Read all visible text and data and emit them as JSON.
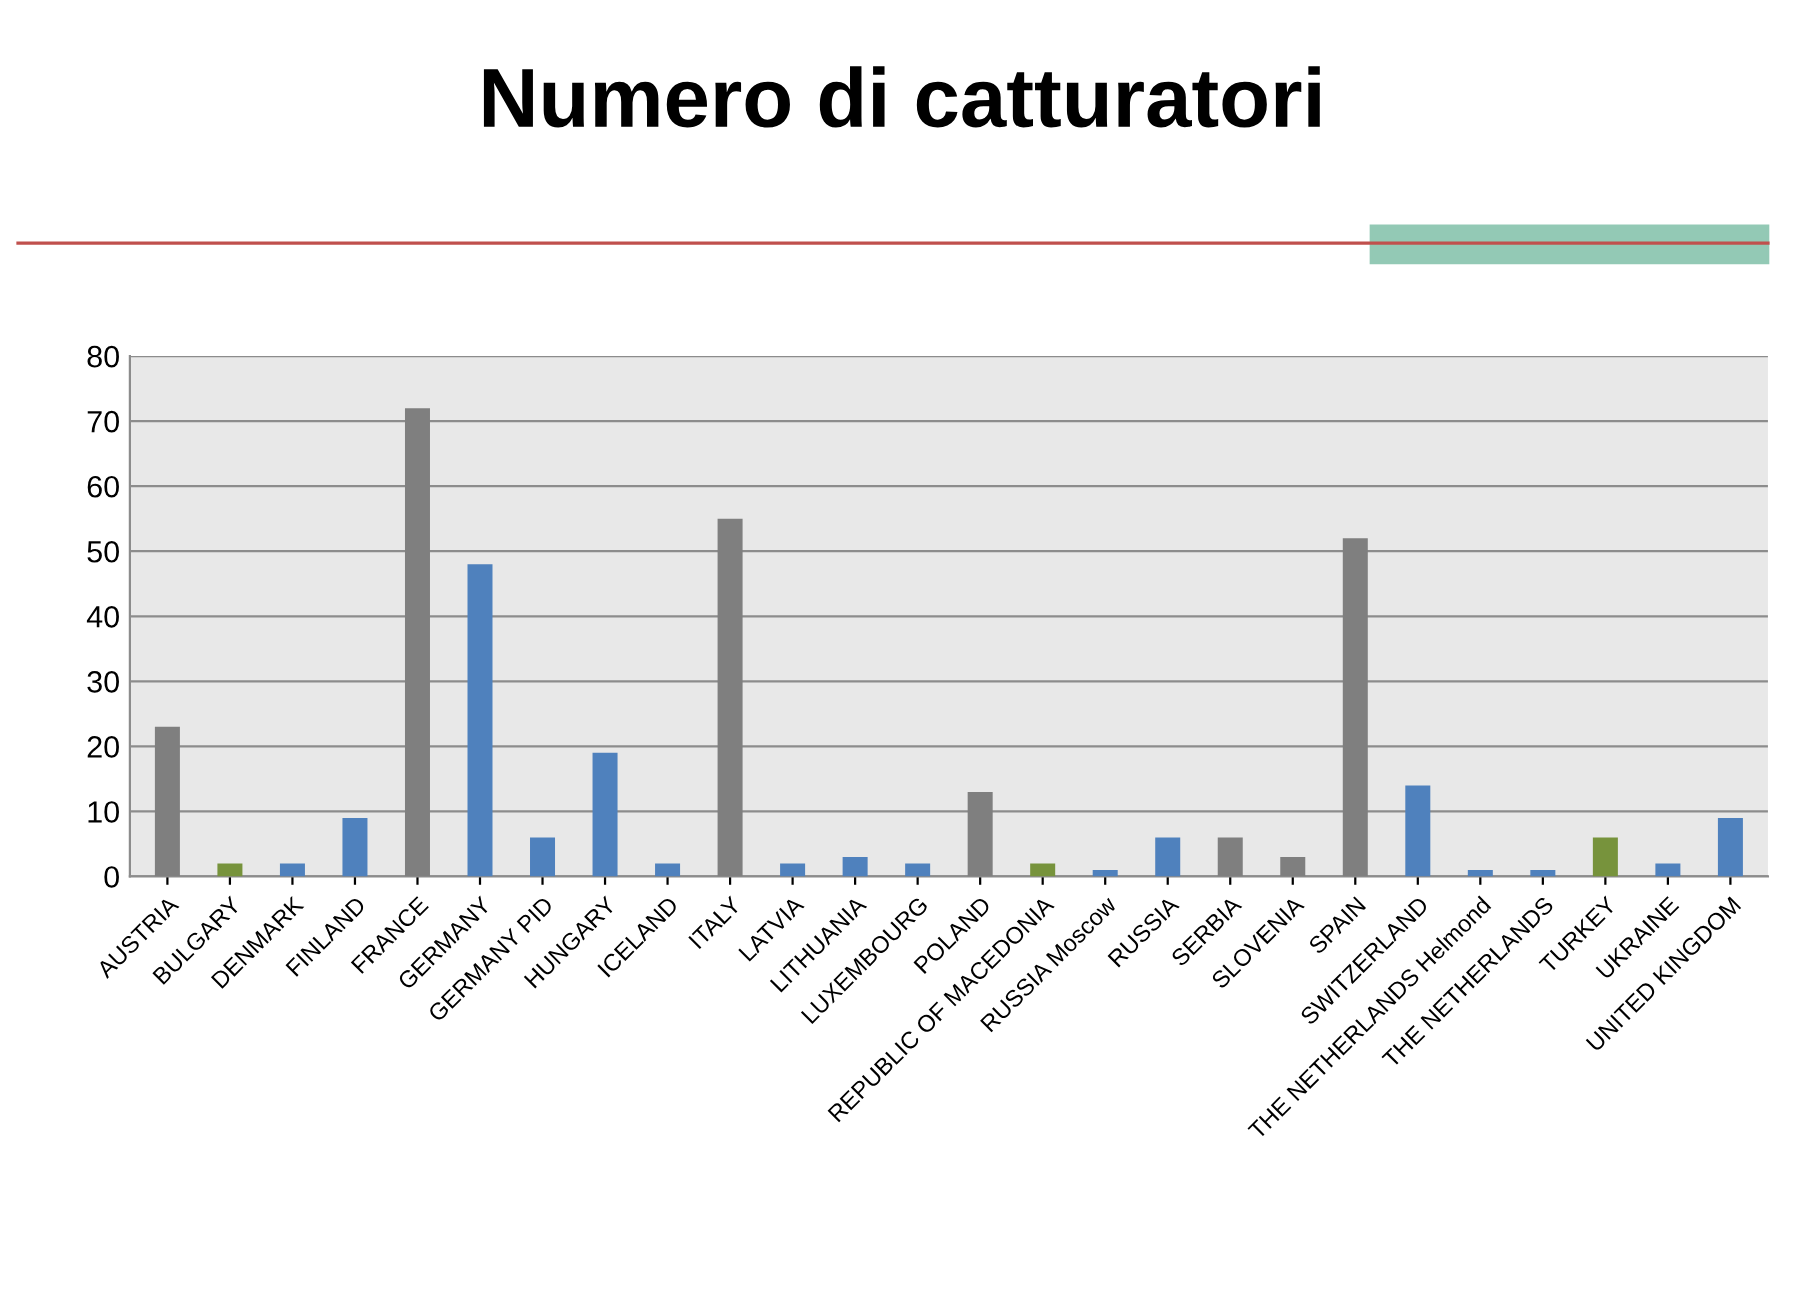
{
  "chart_data": {
    "type": "bar",
    "title": "Numero di catturatori",
    "categories": [
      "AUSTRIA",
      "BULGARY",
      "DENMARK",
      "FINLAND",
      "FRANCE",
      "GERMANY",
      "GERMANY PID",
      "HUNGARY",
      "ICELAND",
      "ITALY",
      "LATVIA",
      "LITHUANIA",
      "LUXEMBOURG",
      "POLAND",
      "REPUBLIC OF MACEDONIA",
      "RUSSIA Moscow",
      "RUSSIA",
      "SERBIA",
      "SLOVENIA",
      "SPAIN",
      "SWITZERLAND",
      "THE NETHERLANDS Helmond",
      "THE NETHERLANDS",
      "TURKEY",
      "UKRAINE",
      "UNITED KINGDOM"
    ],
    "values": [
      23,
      2,
      2,
      9,
      72,
      48,
      6,
      19,
      2,
      55,
      2,
      3,
      2,
      13,
      2,
      1,
      6,
      6,
      3,
      52,
      14,
      1,
      1,
      6,
      2,
      9
    ],
    "colors": [
      "#7f7f7f",
      "#77933c",
      "#4f81bd",
      "#4f81bd",
      "#7f7f7f",
      "#4f81bd",
      "#4f81bd",
      "#4f81bd",
      "#4f81bd",
      "#7f7f7f",
      "#4f81bd",
      "#4f81bd",
      "#4f81bd",
      "#7f7f7f",
      "#77933c",
      "#4f81bd",
      "#4f81bd",
      "#7f7f7f",
      "#7f7f7f",
      "#7f7f7f",
      "#4f81bd",
      "#4f81bd",
      "#4f81bd",
      "#77933c",
      "#4f81bd",
      "#4f81bd"
    ],
    "ylim": [
      0,
      80
    ],
    "yticks": [
      0,
      10,
      20,
      30,
      40,
      50,
      60,
      70,
      80
    ],
    "grid": "y"
  }
}
